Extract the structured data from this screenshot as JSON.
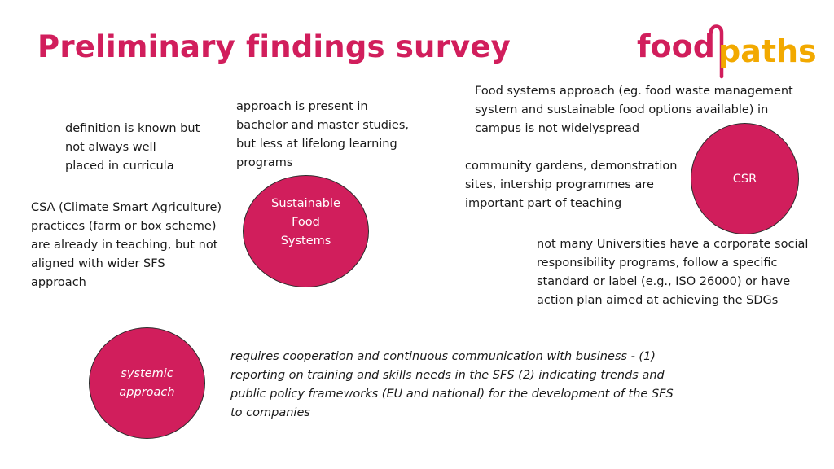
{
  "slide": {
    "title": "Preliminary findings survey",
    "logo": {
      "part1": "food",
      "part2": "paths",
      "colors": {
        "food": "#d11e5c",
        "paths": "#f2a900"
      }
    },
    "notes": {
      "definition": "definition is known but\nnot always well\nplaced in curricula",
      "approach": "approach is present in\nbachelor and master studies,\nbut less at lifelong learning\nprograms",
      "food_systems": "Food systems approach (eg. food waste management\nsystem and sustainable food options available)  in\ncampus is not widelyspread",
      "community": "community gardens, demonstration\nsites, intership programmes are\nimportant part of teaching",
      "csa": "CSA (Climate Smart Agriculture)\npractices (farm or box scheme)\nare already in teaching, but not\naligned with wider SFS\napproach",
      "csr_detail": "not many Universities have a corporate social\nresponsibility programs, follow a specific\nstandard or label (e.g., ISO 26000) or have\naction plan aimed at achieving the SDGs",
      "cooperation": "requires cooperation and continuous communication with business - (1)\nreporting on training and skills needs in the SFS (2) indicating trends and\npublic policy frameworks (EU and national) for the development of the SFS\nto companies"
    },
    "circles": {
      "sfs": "Sustainable\nFood\nSystems",
      "csr": "CSR",
      "systemic": "systemic\napproach"
    },
    "colors": {
      "accent": "#d11e5c",
      "text": "#1a1a1a"
    }
  }
}
